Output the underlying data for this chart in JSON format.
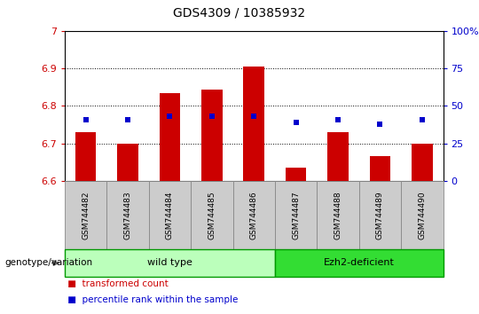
{
  "title": "GDS4309 / 10385932",
  "samples": [
    "GSM744482",
    "GSM744483",
    "GSM744484",
    "GSM744485",
    "GSM744486",
    "GSM744487",
    "GSM744488",
    "GSM744489",
    "GSM744490"
  ],
  "red_values": [
    6.73,
    6.7,
    6.835,
    6.845,
    6.905,
    6.635,
    6.73,
    6.665,
    6.7
  ],
  "blue_values": [
    6.762,
    6.762,
    6.773,
    6.773,
    6.773,
    6.755,
    6.762,
    6.752,
    6.762
  ],
  "ymin": 6.6,
  "ymax": 7.0,
  "yticks_left": [
    6.6,
    6.7,
    6.8,
    6.9,
    7.0
  ],
  "yticks_left_labels": [
    "6.6",
    "6.7",
    "6.8",
    "6.9",
    "7"
  ],
  "right_ytick_pcts": [
    0,
    25,
    50,
    75,
    100
  ],
  "right_yticklabels": [
    "0",
    "25",
    "50",
    "75",
    "100%"
  ],
  "bar_color": "#cc0000",
  "dot_color": "#0000cc",
  "wild_type_label": "wild type",
  "ezh2_label": "Ezh2-deficient",
  "group_box_color_wt": "#bbffbb",
  "group_box_color_ezh2": "#33dd33",
  "legend_red_label": "transformed count",
  "legend_blue_label": "percentile rank within the sample",
  "left_label": "genotype/variation",
  "bg_color": "#ffffff",
  "tick_label_color_left": "#cc0000",
  "tick_label_color_right": "#0000cc",
  "dotted_yticks": [
    6.7,
    6.8,
    6.9
  ],
  "bar_width": 0.5,
  "xtick_bg": "#cccccc",
  "border_color": "#000000"
}
